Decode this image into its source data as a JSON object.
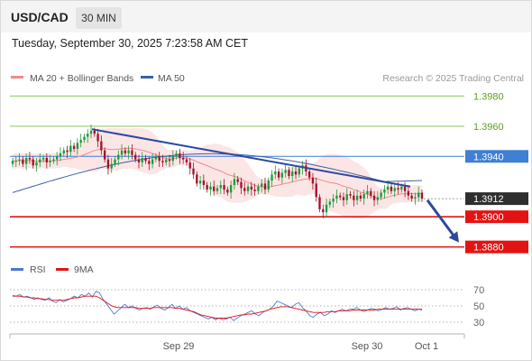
{
  "header": {
    "symbol": "USD/CAD",
    "interval": "30 MIN"
  },
  "timestamp": "Tuesday, September 30, 2025 7:23:58 AM CET",
  "legend": {
    "ma20_label": "MA 20 + Bollinger Bands",
    "ma50_label": "MA 50",
    "credit": "Research © 2025 Trading Central",
    "rsi_label": "RSI",
    "rsi_ma_label": "9MA"
  },
  "colors": {
    "candle_up": "#1e9a3a",
    "candle_down": "#a3122a",
    "ma20": "#ef8a8a",
    "bollinger_fill": "#fbdcdc",
    "ma50": "#3c5fa8",
    "trendline": "#2b4a9c",
    "resistance": "#8cc751",
    "pivot": "#3f7fd4",
    "support": "#e31313",
    "rsi": "#4d77d1",
    "rsi_ma": "#e31313"
  },
  "chart_data": [
    {
      "type": "candlestick",
      "x_tick_labels": [
        "Sep 29",
        "Sep 30",
        "Oct 1"
      ],
      "ylim": [
        1.3872,
        1.3988
      ],
      "last_price": "1.3912",
      "levels": [
        {
          "value": 1.398,
          "label": "1.3980",
          "kind": "resistance"
        },
        {
          "value": 1.396,
          "label": "1.3960",
          "kind": "resistance"
        },
        {
          "value": 1.394,
          "label": "1.3940",
          "kind": "pivot"
        },
        {
          "value": 1.39,
          "label": "1.3900",
          "kind": "support"
        },
        {
          "value": 1.388,
          "label": "1.3880",
          "kind": "support"
        }
      ],
      "trendline": {
        "start": 1.3958,
        "end": 1.392
      },
      "forecast_arrow": {
        "from": 1.3911,
        "to": 1.3883
      },
      "closes": [
        1.3937,
        1.3937,
        1.3938,
        1.3935,
        1.3939,
        1.3938,
        1.3934,
        1.3936,
        1.3938,
        1.3939,
        1.3936,
        1.3937,
        1.3938,
        1.394,
        1.3942,
        1.3944,
        1.3943,
        1.3947,
        1.3945,
        1.3949,
        1.3951,
        1.3953,
        1.3955,
        1.3957,
        1.3955,
        1.395,
        1.3944,
        1.3938,
        1.3932,
        1.3935,
        1.3938,
        1.3941,
        1.3944,
        1.3942,
        1.3944,
        1.3941,
        1.3938,
        1.3936,
        1.3939,
        1.3937,
        1.3935,
        1.3938,
        1.394,
        1.3937,
        1.3936,
        1.3938,
        1.3937,
        1.394,
        1.3942,
        1.3939,
        1.3938,
        1.3936,
        1.3932,
        1.3928,
        1.3922,
        1.3924,
        1.3921,
        1.3918,
        1.392,
        1.3917,
        1.3919,
        1.3921,
        1.3918,
        1.3916,
        1.3921,
        1.3925,
        1.3923,
        1.3919,
        1.3917,
        1.392,
        1.3918,
        1.3917,
        1.392,
        1.3922,
        1.3918,
        1.3924,
        1.3928,
        1.393,
        1.3926,
        1.3929,
        1.3931,
        1.3927,
        1.393,
        1.3928,
        1.3932,
        1.3934,
        1.393,
        1.3926,
        1.3922,
        1.3913,
        1.3905,
        1.3903,
        1.3908,
        1.391,
        1.3912,
        1.3914,
        1.3913,
        1.3911,
        1.3915,
        1.3914,
        1.3911,
        1.3914,
        1.3912,
        1.3915,
        1.3917,
        1.3914,
        1.3911,
        1.3913,
        1.3916,
        1.3918,
        1.392,
        1.3917,
        1.3919,
        1.3918,
        1.392,
        1.3917,
        1.3914,
        1.3912,
        1.3913,
        1.3916,
        1.3912
      ],
      "ma50_start": 1.3916,
      "ma50_end": 1.3924
    },
    {
      "type": "line",
      "title": "RSI",
      "ylim": [
        20,
        80
      ],
      "y_tick_labels": [
        "70",
        "50",
        "30"
      ],
      "rsi": [
        63,
        62,
        64,
        61,
        62,
        60,
        58,
        60,
        58,
        57,
        60,
        56,
        54,
        58,
        55,
        57,
        59,
        62,
        60,
        64,
        62,
        66,
        61,
        68,
        66,
        58,
        52,
        46,
        40,
        44,
        48,
        52,
        48,
        50,
        47,
        45,
        47,
        48,
        46,
        49,
        51,
        47,
        45,
        48,
        52,
        47,
        50,
        46,
        48,
        44,
        42,
        40,
        38,
        36,
        34,
        36,
        33,
        35,
        33,
        34,
        36,
        32,
        35,
        38,
        40,
        42,
        44,
        40,
        38,
        42,
        44,
        46,
        50,
        56,
        54,
        52,
        50,
        48,
        52,
        54,
        48,
        44,
        38,
        36,
        40,
        42,
        38,
        40,
        44,
        42,
        44,
        46,
        44,
        46,
        46,
        48,
        45,
        43,
        45,
        47,
        46,
        44,
        46,
        48,
        46,
        47,
        49,
        45,
        47,
        48,
        46,
        44,
        46,
        45
      ],
      "rsi_ma": [
        62,
        62,
        62,
        61,
        61,
        60,
        60,
        59,
        59,
        58,
        58,
        57,
        57,
        57,
        57,
        58,
        59,
        60,
        60,
        61,
        62,
        62,
        62,
        62,
        60,
        57,
        54,
        51,
        49,
        48,
        48,
        48,
        48,
        48,
        48,
        47,
        47,
        47,
        47,
        48,
        48,
        48,
        48,
        48,
        48,
        47,
        47,
        46,
        45,
        44,
        43,
        41,
        39,
        38,
        37,
        36,
        35,
        35,
        35,
        35,
        36,
        37,
        38,
        39,
        39,
        40,
        40,
        41,
        42,
        43,
        44,
        46,
        47,
        48,
        49,
        49,
        49,
        48,
        47,
        46,
        45,
        44,
        43,
        42,
        42,
        42,
        42,
        43,
        43,
        43,
        44,
        44,
        44,
        44,
        45,
        45,
        45,
        45,
        45,
        45,
        45,
        46,
        46,
        46,
        46,
        46,
        46,
        46,
        46,
        46,
        46,
        46,
        46,
        46
      ]
    }
  ]
}
